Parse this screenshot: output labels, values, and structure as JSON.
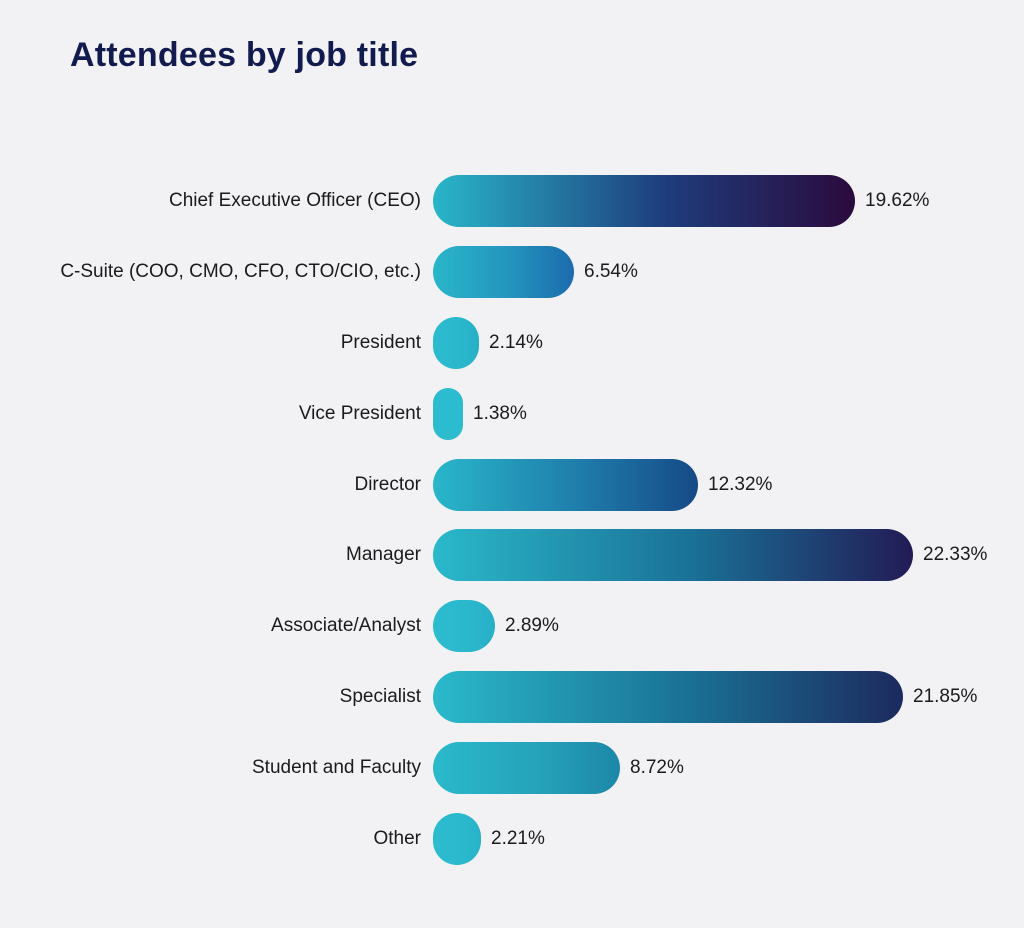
{
  "title": "Attendees by job title",
  "page": {
    "background_color": "#f2f2f4",
    "title_color": "#111b4e",
    "text_color": "#1b1b1b"
  },
  "chart_data": {
    "type": "bar",
    "orientation": "horizontal",
    "title": "Attendees by job title",
    "xlabel": "",
    "ylabel": "",
    "axis_visible": false,
    "grid": false,
    "legend": false,
    "xlim": [
      0,
      22.33
    ],
    "unit": "percent",
    "categories": [
      "Chief Executive Officer (CEO)",
      "C-Suite (COO, CMO, CFO, CTO/CIO, etc.)",
      "President",
      "Vice President",
      "Director",
      "Manager",
      "Associate/Analyst",
      "Specialist",
      "Student and Faculty",
      "Other"
    ],
    "values": [
      19.62,
      6.54,
      2.14,
      1.38,
      12.32,
      22.33,
      2.89,
      21.85,
      8.72,
      2.21
    ],
    "value_labels": [
      "19.62%",
      "6.54%",
      "2.14%",
      "1.38%",
      "12.32%",
      "22.33%",
      "2.89%",
      "21.85%",
      "8.72%",
      "2.21%"
    ],
    "bar_gradients": [
      [
        "#29b6ca",
        "#1e3d7c",
        "#2b0a3d"
      ],
      [
        "#29b6ca",
        "#2394bd",
        "#1d6bae"
      ],
      [
        "#2cbccf",
        "#2ab8cc",
        "#27afc7"
      ],
      [
        "#2cbccf",
        "#2cbccf",
        "#2cbccf"
      ],
      [
        "#29b6ca",
        "#1f7dab",
        "#164a86"
      ],
      [
        "#2ab9cb",
        "#1a6f96",
        "#221b55"
      ],
      [
        "#2cbccf",
        "#2ab8cc",
        "#27afc7"
      ],
      [
        "#2ab9cb",
        "#1a7094",
        "#1c2a5e"
      ],
      [
        "#2ab9cb",
        "#25a3bb",
        "#1d87a8"
      ],
      [
        "#2cbccf",
        "#2bbacd",
        "#28b2c9"
      ]
    ]
  }
}
